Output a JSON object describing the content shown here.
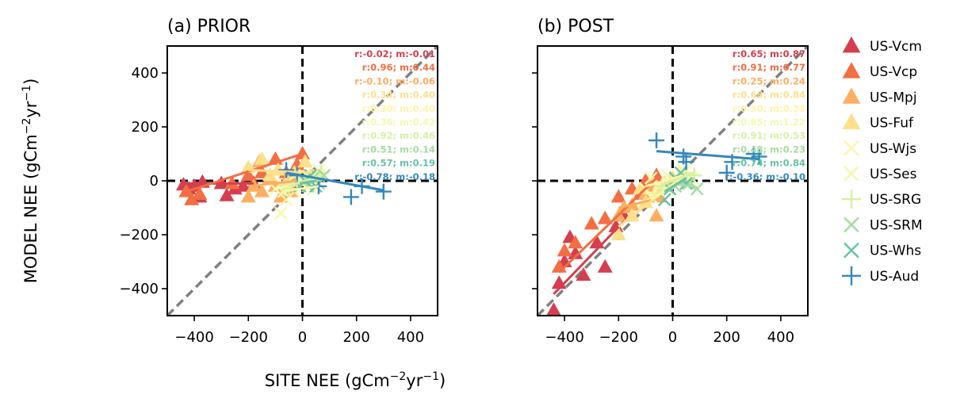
{
  "figure": {
    "xlabel": "SITE NEE (gCm$^{-2}$yr$^{-1}$)",
    "ylabel": "MODEL NEE (gCm$^{-2}$yr$^{-1}$)"
  },
  "chart_data": {
    "type": "scatter",
    "xlim": [
      -500,
      500
    ],
    "ylim": [
      -500,
      500
    ],
    "xticks": [
      -400,
      -200,
      0,
      200,
      400
    ],
    "yticks": [
      -400,
      -200,
      0,
      200,
      400
    ],
    "xtick_labels": [
      "−400",
      "−200",
      "0",
      "200",
      "400"
    ],
    "ytick_labels": [
      "−400",
      "−200",
      "0",
      "200",
      "400"
    ],
    "grid": false,
    "legend_position": "right, outside panels",
    "reference_lines": [
      "x = 0 (black dashed)",
      "y = 0 (black dashed)",
      "1:1 line (grey dashed)"
    ],
    "sites": [
      {
        "name": "US-Vcm",
        "marker": "triangle",
        "color": "#d53e4f"
      },
      {
        "name": "US-Vcp",
        "marker": "triangle",
        "color": "#f46d43"
      },
      {
        "name": "US-Mpj",
        "marker": "triangle",
        "color": "#fdae61"
      },
      {
        "name": "US-Fuf",
        "marker": "triangle",
        "color": "#fee08b"
      },
      {
        "name": "US-Wjs",
        "marker": "x",
        "color": "#fff5a8"
      },
      {
        "name": "US-Ses",
        "marker": "x",
        "color": "#f4faab"
      },
      {
        "name": "US-SRG",
        "marker": "plus",
        "color": "#d9f0a3"
      },
      {
        "name": "US-SRM",
        "marker": "x",
        "color": "#a6dba0"
      },
      {
        "name": "US-Whs",
        "marker": "x",
        "color": "#66c2a5"
      },
      {
        "name": "US-Aud",
        "marker": "plus",
        "color": "#3288bd"
      }
    ],
    "panels": [
      {
        "title": "(a) PRIOR",
        "stats": [
          "r:-0.02; m:-0.01",
          "r:0.96; m:0.44",
          "r:-0.10; m:-0.06",
          "r:0.34; m:0.40",
          "r:0.30; m:0.40",
          "r:0.36; m:0.42",
          "r:0.92; m:0.46",
          "r:0.51; m:0.14",
          "r:0.57; m:0.19",
          "r:-0.78; m:-0.18"
        ],
        "points": [
          [
            [
              -440,
              -15
            ],
            [
              -420,
              -30
            ],
            [
              -400,
              -20
            ],
            [
              -380,
              -60
            ],
            [
              -370,
              -5
            ],
            [
              -300,
              -10
            ],
            [
              -280,
              -55
            ],
            [
              -250,
              -30
            ],
            [
              -220,
              -20
            ],
            [
              -180,
              -10
            ]
          ],
          [
            [
              -430,
              -40
            ],
            [
              -410,
              -70
            ],
            [
              -380,
              -50
            ],
            [
              -260,
              -10
            ],
            [
              -200,
              20
            ],
            [
              -100,
              80
            ],
            [
              -60,
              30
            ],
            [
              -20,
              60
            ],
            [
              0,
              100
            ],
            [
              -150,
              30
            ]
          ],
          [
            [
              -200,
              -60
            ],
            [
              -180,
              -20
            ],
            [
              -150,
              -40
            ],
            [
              -120,
              10
            ],
            [
              -100,
              -20
            ],
            [
              -80,
              -60
            ],
            [
              -60,
              0
            ],
            [
              -40,
              -40
            ],
            [
              -20,
              20
            ],
            [
              -160,
              70
            ]
          ],
          [
            [
              -200,
              50
            ],
            [
              -150,
              80
            ],
            [
              -120,
              20
            ],
            [
              -90,
              40
            ],
            [
              -60,
              -10
            ],
            [
              -30,
              30
            ],
            [
              10,
              70
            ],
            [
              30,
              20
            ],
            [
              -10,
              0
            ]
          ],
          [
            [
              -80,
              -120
            ],
            [
              -60,
              -70
            ],
            [
              -30,
              -40
            ],
            [
              0,
              10
            ],
            [
              20,
              -20
            ],
            [
              40,
              -30
            ],
            [
              60,
              20
            ]
          ],
          [
            [
              -100,
              -30
            ],
            [
              -70,
              -40
            ],
            [
              -30,
              20
            ],
            [
              0,
              -10
            ],
            [
              30,
              10
            ],
            [
              60,
              40
            ]
          ],
          [
            [
              -50,
              -30
            ],
            [
              -20,
              -10
            ],
            [
              10,
              10
            ],
            [
              40,
              0
            ],
            [
              70,
              30
            ]
          ],
          [
            [
              20,
              -20
            ],
            [
              40,
              10
            ],
            [
              60,
              -10
            ],
            [
              80,
              20
            ]
          ],
          [
            [
              -10,
              -20
            ],
            [
              10,
              0
            ],
            [
              30,
              20
            ],
            [
              50,
              -20
            ]
          ],
          [
            [
              -60,
              40
            ],
            [
              -20,
              20
            ],
            [
              60,
              -20
            ],
            [
              180,
              -60
            ],
            [
              300,
              -40
            ],
            [
              220,
              -20
            ]
          ]
        ],
        "fits": [
          [
            [
              -440,
              -10
            ],
            [
              -180,
              -10
            ]
          ],
          [
            [
              -430,
              -40
            ],
            [
              0,
              100
            ]
          ],
          [
            [
              -200,
              -20
            ],
            [
              -20,
              0
            ]
          ],
          [
            [
              -200,
              40
            ],
            [
              30,
              30
            ]
          ],
          [
            [
              -80,
              -40
            ],
            [
              60,
              -20
            ]
          ],
          [
            [
              -100,
              -30
            ],
            [
              60,
              10
            ]
          ],
          [
            [
              -50,
              -20
            ],
            [
              70,
              20
            ]
          ],
          [
            [
              20,
              -5
            ],
            [
              80,
              5
            ]
          ],
          [
            [
              -10,
              -10
            ],
            [
              50,
              0
            ]
          ],
          [
            [
              -60,
              30
            ],
            [
              300,
              -35
            ]
          ]
        ]
      },
      {
        "title": "(b) POST",
        "stats": [
          "r:0.65; m:0.87",
          "r:0.91; m:0.77",
          "r:0.25; m:0.24",
          "r:0.68; m:0.84",
          "r:0.30; m:0.33",
          "r:0.85; m:1.22",
          "r:0.91; m:0.53",
          "r:0.48; m:0.23",
          "r:0.74; m:0.84",
          "r:-0.36; m:-0.10"
        ],
        "points": [
          [
            [
              -440,
              -480
            ],
            [
              -420,
              -380
            ],
            [
              -400,
              -300
            ],
            [
              -380,
              -210
            ],
            [
              -360,
              -270
            ],
            [
              -330,
              -350
            ],
            [
              -280,
              -230
            ],
            [
              -250,
              -320
            ],
            [
              -210,
              -170
            ],
            [
              -180,
              -130
            ]
          ],
          [
            [
              -420,
              -320
            ],
            [
              -400,
              -260
            ],
            [
              -360,
              -230
            ],
            [
              -300,
              -160
            ],
            [
              -250,
              -140
            ],
            [
              -200,
              -60
            ],
            [
              -150,
              -30
            ],
            [
              -100,
              0
            ],
            [
              -60,
              20
            ],
            [
              -120,
              -50
            ]
          ],
          [
            [
              -200,
              -130
            ],
            [
              -180,
              -100
            ],
            [
              -150,
              -90
            ],
            [
              -100,
              -50
            ],
            [
              -80,
              -20
            ],
            [
              -50,
              -60
            ],
            [
              -30,
              -10
            ],
            [
              -60,
              -130
            ]
          ],
          [
            [
              -200,
              -200
            ],
            [
              -150,
              -130
            ],
            [
              -100,
              -80
            ],
            [
              -60,
              -40
            ],
            [
              -30,
              -20
            ],
            [
              0,
              10
            ],
            [
              30,
              20
            ],
            [
              -120,
              -30
            ]
          ],
          [
            [
              -100,
              -30
            ],
            [
              -80,
              10
            ],
            [
              -50,
              -10
            ],
            [
              -20,
              20
            ],
            [
              10,
              0
            ],
            [
              40,
              30
            ]
          ],
          [
            [
              -80,
              -60
            ],
            [
              -50,
              -20
            ],
            [
              -20,
              -30
            ],
            [
              10,
              10
            ],
            [
              40,
              40
            ],
            [
              70,
              10
            ]
          ],
          [
            [
              -40,
              -20
            ],
            [
              -10,
              0
            ],
            [
              20,
              10
            ],
            [
              50,
              30
            ],
            [
              80,
              20
            ]
          ],
          [
            [
              10,
              -20
            ],
            [
              30,
              0
            ],
            [
              60,
              -10
            ],
            [
              90,
              -30
            ]
          ],
          [
            [
              -30,
              -70
            ],
            [
              -10,
              -30
            ],
            [
              10,
              10
            ],
            [
              30,
              30
            ],
            [
              50,
              -10
            ]
          ],
          [
            [
              -60,
              150
            ],
            [
              40,
              90
            ],
            [
              50,
              70
            ],
            [
              200,
              30
            ],
            [
              220,
              70
            ],
            [
              300,
              100
            ],
            [
              320,
              90
            ]
          ]
        ],
        "fits": [
          [
            [
              -440,
              -420
            ],
            [
              -180,
              -150
            ]
          ],
          [
            [
              -420,
              -340
            ],
            [
              -60,
              10
            ]
          ],
          [
            [
              -200,
              -100
            ],
            [
              -30,
              -60
            ]
          ],
          [
            [
              -200,
              -170
            ],
            [
              30,
              10
            ]
          ],
          [
            [
              -100,
              -20
            ],
            [
              40,
              20
            ]
          ],
          [
            [
              -80,
              -70
            ],
            [
              70,
              30
            ]
          ],
          [
            [
              -40,
              -15
            ],
            [
              80,
              30
            ]
          ],
          [
            [
              10,
              -10
            ],
            [
              90,
              -25
            ]
          ],
          [
            [
              -30,
              -40
            ],
            [
              50,
              10
            ]
          ],
          [
            [
              -60,
              110
            ],
            [
              320,
              80
            ]
          ]
        ]
      }
    ]
  }
}
